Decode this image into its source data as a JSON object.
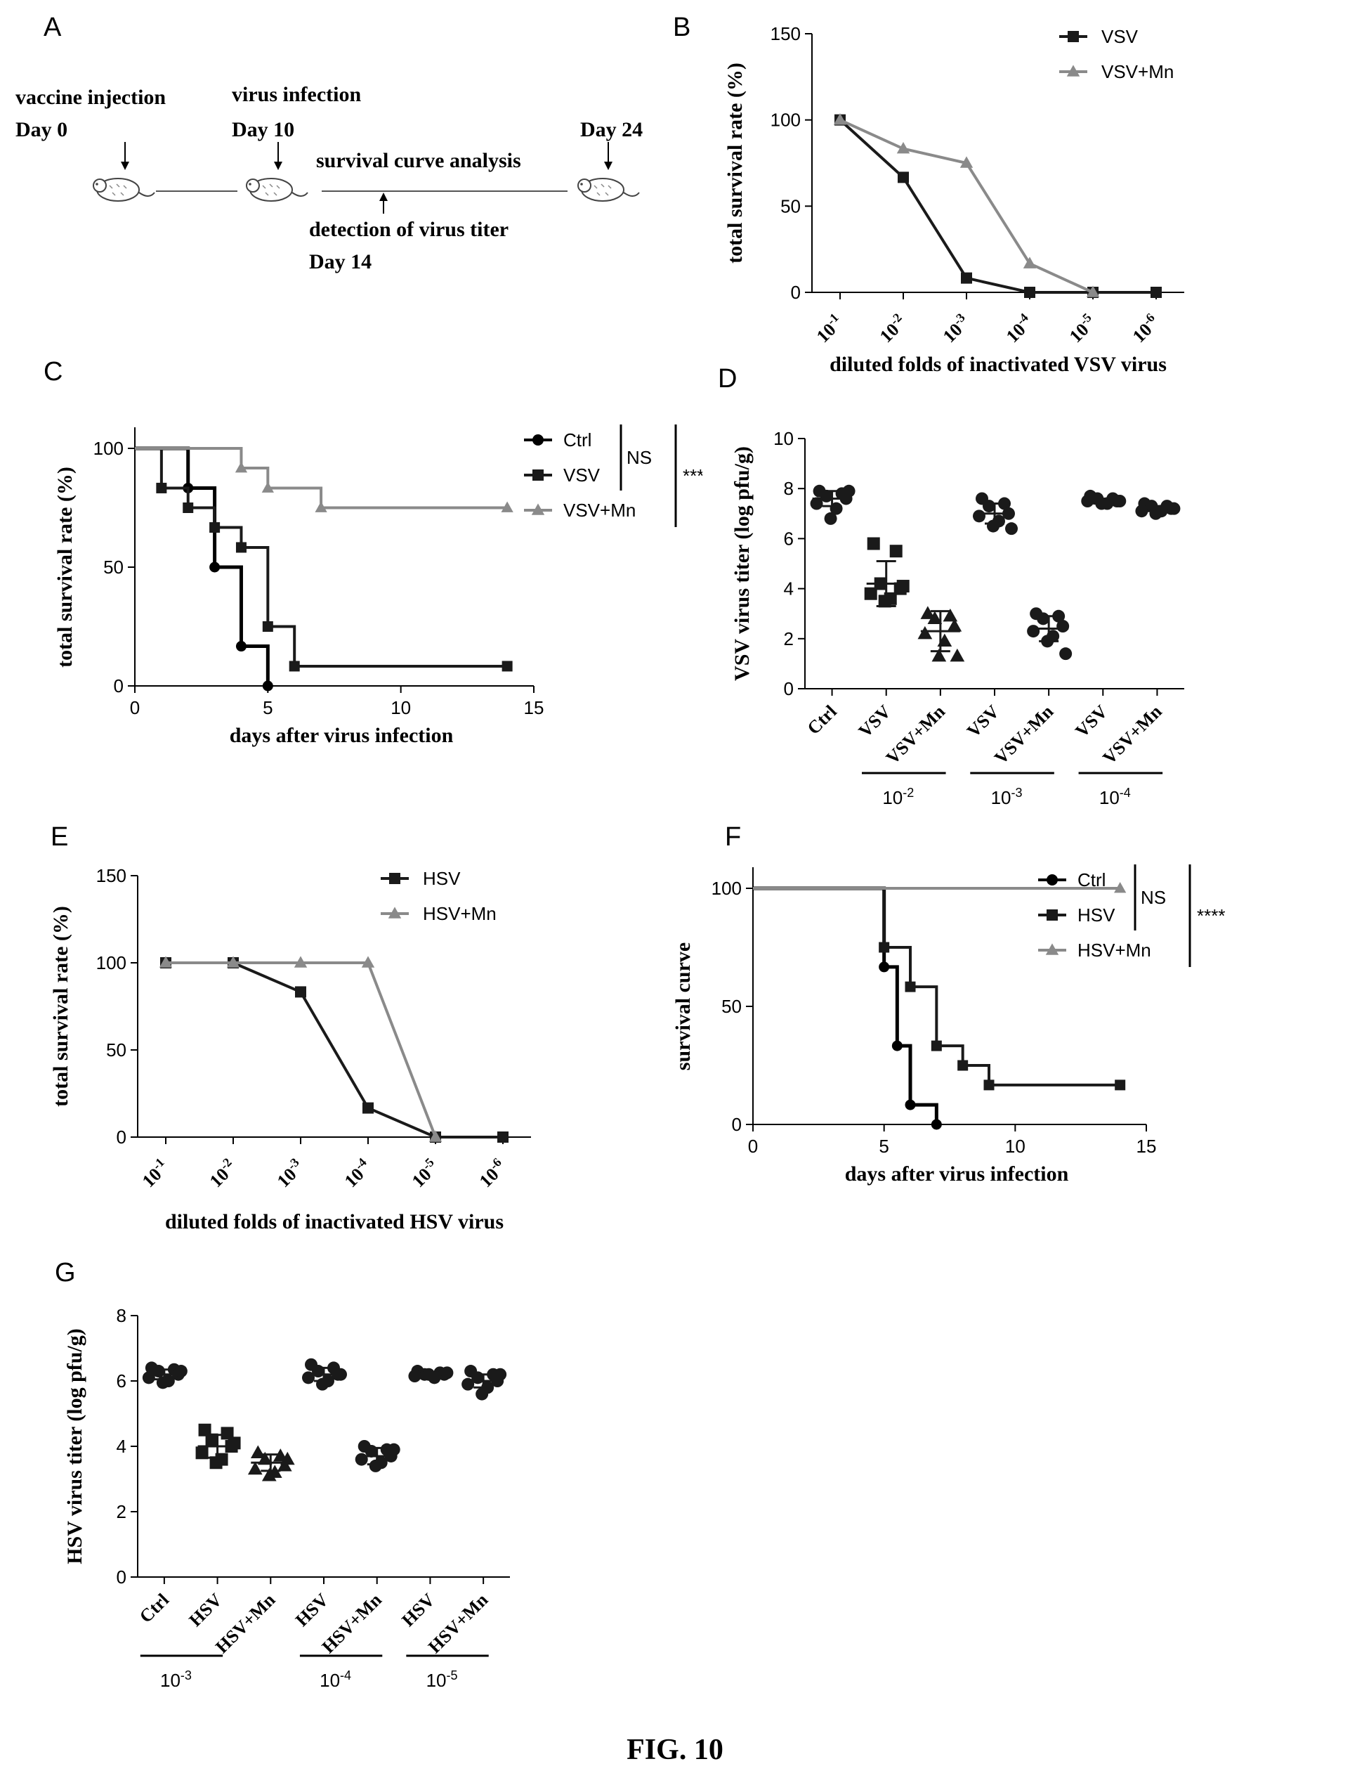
{
  "figure_label": "FIG. 10",
  "panel_A": {
    "letter": "A",
    "labels": {
      "vaccine": "vaccine injection",
      "day0": "Day 0",
      "virus": "virus infection",
      "day10": "Day 10",
      "survival": "survival curve analysis",
      "day24": "Day 24",
      "detection": "detection of virus titer",
      "day14": "Day 14"
    }
  },
  "colors": {
    "dark": "#1a1a1a",
    "grey": "#8a8a8a",
    "ctrl": "#000000"
  },
  "chart_data": [
    {
      "panel": "B",
      "type": "line",
      "categories_text": [
        [
          "10",
          "-1"
        ],
        [
          "10",
          "-2"
        ],
        [
          "10",
          "-3"
        ],
        [
          "10",
          "-4"
        ],
        [
          "10",
          "-5"
        ],
        [
          "10",
          "-6"
        ]
      ],
      "series": [
        {
          "name": "VSV",
          "marker": "square",
          "values": [
            100,
            66.7,
            8.3,
            0,
            0,
            0
          ]
        },
        {
          "name": "VSV+Mn",
          "marker": "triangle",
          "values": [
            100,
            83.3,
            75,
            16.7,
            0,
            null
          ]
        }
      ],
      "ylabel": "total survival rate (%)",
      "xlabel": "diluted folds of inactivated VSV virus",
      "ylim": [
        0,
        150
      ],
      "yticks": [
        "0",
        "50",
        "100",
        "150"
      ],
      "legend": "top-right"
    },
    {
      "panel": "C",
      "type": "line",
      "subtype": "survival-step",
      "series": [
        {
          "name": "Ctrl",
          "marker": "circle",
          "points": [
            [
              0,
              100
            ],
            [
              2,
              83.3
            ],
            [
              3,
              50
            ],
            [
              4,
              16.7
            ],
            [
              5,
              0
            ]
          ]
        },
        {
          "name": "VSV",
          "marker": "square",
          "points": [
            [
              0,
              100
            ],
            [
              1,
              83.3
            ],
            [
              2,
              75
            ],
            [
              3,
              66.7
            ],
            [
              4,
              58.3
            ],
            [
              5,
              25
            ],
            [
              6,
              8.3
            ],
            [
              14,
              8.3
            ]
          ]
        },
        {
          "name": "VSV+Mn",
          "marker": "triangle",
          "points": [
            [
              0,
              100
            ],
            [
              4,
              91.7
            ],
            [
              5,
              83.3
            ],
            [
              7,
              75
            ],
            [
              14,
              75
            ]
          ]
        }
      ],
      "xlabel": "days after virus infection",
      "ylabel": "total survival rate (%)",
      "xlim": [
        0,
        15
      ],
      "ylim": [
        0,
        100
      ],
      "xticks": [
        "0",
        "5",
        "10",
        "15"
      ],
      "yticks": [
        "0",
        "50",
        "100"
      ],
      "annotations": {
        "ns": "NS",
        "sig": "****"
      },
      "legend": "right"
    },
    {
      "panel": "D",
      "type": "scatter",
      "groups": [
        {
          "label": "Ctrl",
          "marker": "circle",
          "mean": 7.6,
          "sd": 0.3,
          "points": [
            7.9,
            7.8,
            7.7,
            7.6,
            7.4,
            7.2,
            6.8,
            7.9
          ]
        },
        {
          "label": "VSV",
          "marker": "square",
          "mean": 4.2,
          "sd": 0.9,
          "points": [
            5.8,
            5.5,
            4.2,
            4.0,
            3.8,
            3.6,
            3.5,
            4.1
          ]
        },
        {
          "label": "VSV+Mn",
          "marker": "triangle",
          "mean": 2.3,
          "sd": 0.8,
          "points": [
            3.0,
            2.9,
            2.8,
            2.5,
            2.2,
            1.9,
            1.3,
            1.3
          ]
        },
        {
          "label": "VSV",
          "marker": "circle",
          "mean": 7.0,
          "sd": 0.4,
          "points": [
            7.6,
            7.4,
            7.3,
            7.0,
            6.9,
            6.7,
            6.5,
            6.4
          ]
        },
        {
          "label": "VSV+Mn",
          "marker": "circle",
          "mean": 2.4,
          "sd": 0.5,
          "points": [
            3.0,
            2.9,
            2.8,
            2.5,
            2.3,
            2.1,
            1.9,
            1.4
          ]
        },
        {
          "label": "VSV",
          "marker": "circle",
          "mean": 7.5,
          "sd": 0.1,
          "points": [
            7.7,
            7.6,
            7.6,
            7.5,
            7.5,
            7.4,
            7.4,
            7.5
          ]
        },
        {
          "label": "VSV+Mn",
          "marker": "circle",
          "mean": 7.2,
          "sd": 0.1,
          "points": [
            7.4,
            7.3,
            7.3,
            7.2,
            7.1,
            7.1,
            7.0,
            7.2
          ]
        }
      ],
      "brackets": [
        {
          "label": [
            "10",
            "-2"
          ],
          "from": 1,
          "to": 2
        },
        {
          "label": [
            "10",
            "-3"
          ],
          "from": 3,
          "to": 4
        },
        {
          "label": [
            "10",
            "-4"
          ],
          "from": 5,
          "to": 6
        }
      ],
      "ylabel": "VSV virus titer (log pfu/g)",
      "ylim": [
        0,
        10
      ],
      "yticks": [
        "0",
        "2",
        "4",
        "6",
        "8",
        "10"
      ]
    },
    {
      "panel": "E",
      "type": "line",
      "categories_text": [
        [
          "10",
          "-1"
        ],
        [
          "10",
          "-2"
        ],
        [
          "10",
          "-3"
        ],
        [
          "10",
          "-4"
        ],
        [
          "10",
          "-5"
        ],
        [
          "10",
          "-6"
        ]
      ],
      "series": [
        {
          "name": "HSV",
          "marker": "square",
          "values": [
            100,
            100,
            83.3,
            16.7,
            0,
            0
          ]
        },
        {
          "name": "HSV+Mn",
          "marker": "triangle",
          "values": [
            100,
            100,
            100,
            100,
            0,
            null
          ]
        }
      ],
      "ylabel": "total survival rate (%)",
      "xlabel": "diluted folds of inactivated HSV virus",
      "ylim": [
        0,
        150
      ],
      "yticks": [
        "0",
        "50",
        "100",
        "150"
      ],
      "legend": "top-right"
    },
    {
      "panel": "F",
      "type": "line",
      "subtype": "survival-step",
      "series": [
        {
          "name": "Ctrl",
          "marker": "circle",
          "points": [
            [
              0,
              100
            ],
            [
              5,
              66.7
            ],
            [
              5.5,
              33.3
            ],
            [
              6,
              8.3
            ],
            [
              7,
              0
            ]
          ]
        },
        {
          "name": "HSV",
          "marker": "square",
          "points": [
            [
              0,
              100
            ],
            [
              5,
              75
            ],
            [
              6,
              58.3
            ],
            [
              7,
              33.3
            ],
            [
              8,
              25
            ],
            [
              9,
              16.7
            ],
            [
              14,
              16.7
            ]
          ]
        },
        {
          "name": "HSV+Mn",
          "marker": "triangle",
          "points": [
            [
              0,
              100
            ],
            [
              14,
              100
            ]
          ]
        }
      ],
      "xlabel": "days after virus infection",
      "ylabel": "survival curve",
      "xlim": [
        0,
        15
      ],
      "ylim": [
        0,
        100
      ],
      "xticks": [
        "0",
        "5",
        "10",
        "15"
      ],
      "yticks": [
        "0",
        "50",
        "100"
      ],
      "annotations": {
        "ns": "NS",
        "sig": "****"
      },
      "legend": "right"
    },
    {
      "panel": "G",
      "type": "scatter",
      "groups": [
        {
          "label": "Ctrl",
          "marker": "circle",
          "mean": 6.2,
          "sd": 0.15,
          "points": [
            6.4,
            6.35,
            6.3,
            6.2,
            6.1,
            6.0,
            5.95,
            6.3
          ]
        },
        {
          "label": "HSV",
          "marker": "square",
          "mean": 4.0,
          "sd": 0.35,
          "points": [
            4.5,
            4.4,
            4.2,
            4.0,
            3.8,
            3.6,
            3.5,
            4.1
          ]
        },
        {
          "label": "HSV+Mn",
          "marker": "triangle",
          "mean": 3.5,
          "sd": 0.25,
          "points": [
            3.8,
            3.7,
            3.6,
            3.4,
            3.3,
            3.2,
            3.1,
            3.6
          ]
        },
        {
          "label": "HSV",
          "marker": "circle",
          "mean": 6.2,
          "sd": 0.2,
          "points": [
            6.5,
            6.4,
            6.3,
            6.2,
            6.1,
            6.0,
            5.9,
            6.2
          ]
        },
        {
          "label": "HSV+Mn",
          "marker": "circle",
          "mean": 3.7,
          "sd": 0.25,
          "points": [
            4.0,
            3.9,
            3.85,
            3.7,
            3.6,
            3.5,
            3.4,
            3.9
          ]
        },
        {
          "label": "HSV",
          "marker": "circle",
          "mean": 6.2,
          "sd": 0.05,
          "points": [
            6.3,
            6.25,
            6.2,
            6.2,
            6.15,
            6.1,
            6.2,
            6.25
          ]
        },
        {
          "label": "HSV+Mn",
          "marker": "circle",
          "mean": 6.0,
          "sd": 0.2,
          "points": [
            6.3,
            6.2,
            6.1,
            6.0,
            5.9,
            5.8,
            5.6,
            6.2
          ]
        }
      ],
      "brackets": [
        {
          "label": [
            "10",
            "-3"
          ],
          "from": 0,
          "to": 1
        },
        {
          "label": [
            "10",
            "-4"
          ],
          "from": 3,
          "to": 4
        },
        {
          "label": [
            "10",
            "-5"
          ],
          "from": 5,
          "to": 6
        }
      ],
      "ylabel": "HSV virus titer (log pfu/g)",
      "ylim": [
        0,
        8
      ],
      "yticks": [
        "0",
        "2",
        "4",
        "6",
        "8"
      ]
    }
  ]
}
